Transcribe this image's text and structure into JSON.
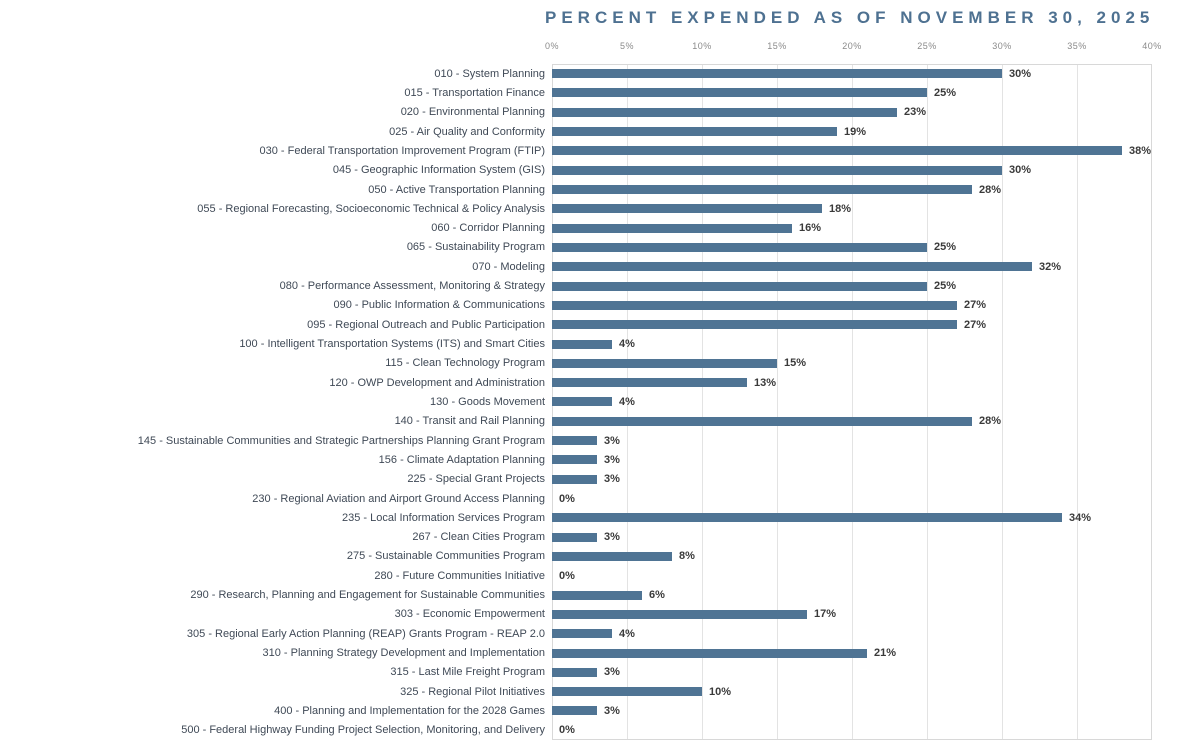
{
  "title": "PERCENT EXPENDED AS OF NOVEMBER 30, 2025",
  "colors": {
    "bar": "#4f7494",
    "title": "#4e7191",
    "grid": "#e3e3e3",
    "border": "#d8d8d8",
    "category_label": "#3f4956",
    "value_label": "#3a3a3a",
    "tick_label": "#8a8a8a"
  },
  "axis": {
    "ticks": [
      "0%",
      "5%",
      "10%",
      "15%",
      "20%",
      "25%",
      "30%",
      "35%",
      "40%"
    ],
    "min": 0,
    "max": 40,
    "tick_step": 5
  },
  "chart_data": {
    "type": "bar",
    "orientation": "horizontal",
    "title": "PERCENT EXPENDED AS OF NOVEMBER 30, 2025",
    "xlabel": "",
    "ylabel": "",
    "xlim": [
      0,
      40
    ],
    "grid": true,
    "legend": false,
    "categories": [
      "010 - System Planning",
      "015 - Transportation Finance",
      "020 - Environmental Planning",
      "025 - Air Quality and Conformity",
      "030 - Federal Transportation Improvement Program (FTIP)",
      "045 - Geographic Information System (GIS)",
      "050 - Active Transportation Planning",
      "055 - Regional Forecasting, Socioeconomic Technical & Policy Analysis",
      "060 - Corridor Planning",
      "065 - Sustainability Program",
      "070 - Modeling",
      "080 - Performance Assessment, Monitoring & Strategy",
      "090 - Public Information & Communications",
      "095 - Regional Outreach and Public Participation",
      "100 - Intelligent Transportation Systems (ITS) and Smart Cities",
      "115 - Clean Technology Program",
      "120 - OWP Development and Administration",
      "130 - Goods Movement",
      "140 - Transit and Rail Planning",
      "145 - Sustainable Communities and Strategic Partnerships Planning Grant Program",
      "156 - Climate Adaptation Planning",
      "225 - Special Grant Projects",
      "230 - Regional Aviation and Airport Ground Access Planning",
      "235 - Local Information Services Program",
      "267 - Clean Cities Program",
      "275 - Sustainable Communities Program",
      "280 - Future Communities Initiative",
      "290 - Research, Planning and Engagement for Sustainable Communities",
      "303 - Economic Empowerment",
      "305 - Regional Early Action Planning (REAP) Grants Program - REAP 2.0",
      "310 - Planning Strategy Development and Implementation",
      "315 - Last Mile Freight Program",
      "325 - Regional Pilot Initiatives",
      "400 - Planning and Implementation for the 2028 Games",
      "500 - Federal Highway Funding Project Selection, Monitoring, and Delivery"
    ],
    "values": [
      30,
      25,
      23,
      19,
      38,
      30,
      28,
      18,
      16,
      25,
      32,
      25,
      27,
      27,
      4,
      15,
      13,
      4,
      28,
      3,
      3,
      3,
      0,
      34,
      3,
      8,
      0,
      6,
      17,
      4,
      21,
      3,
      10,
      3,
      0
    ],
    "display_values": [
      "30%",
      "25%",
      "23%",
      "19%",
      "38%",
      "30%",
      "28%",
      "18%",
      "16%",
      "25%",
      "32%",
      "25%",
      "27%",
      "27%",
      "4%",
      "15%",
      "13%",
      "4%",
      "28%",
      "3%",
      "3%",
      "3%",
      "0%",
      "34%",
      "3%",
      "8%",
      "0%",
      "6%",
      "17%",
      "4%",
      "21%",
      "3%",
      "10%",
      "3%",
      "0%"
    ]
  }
}
